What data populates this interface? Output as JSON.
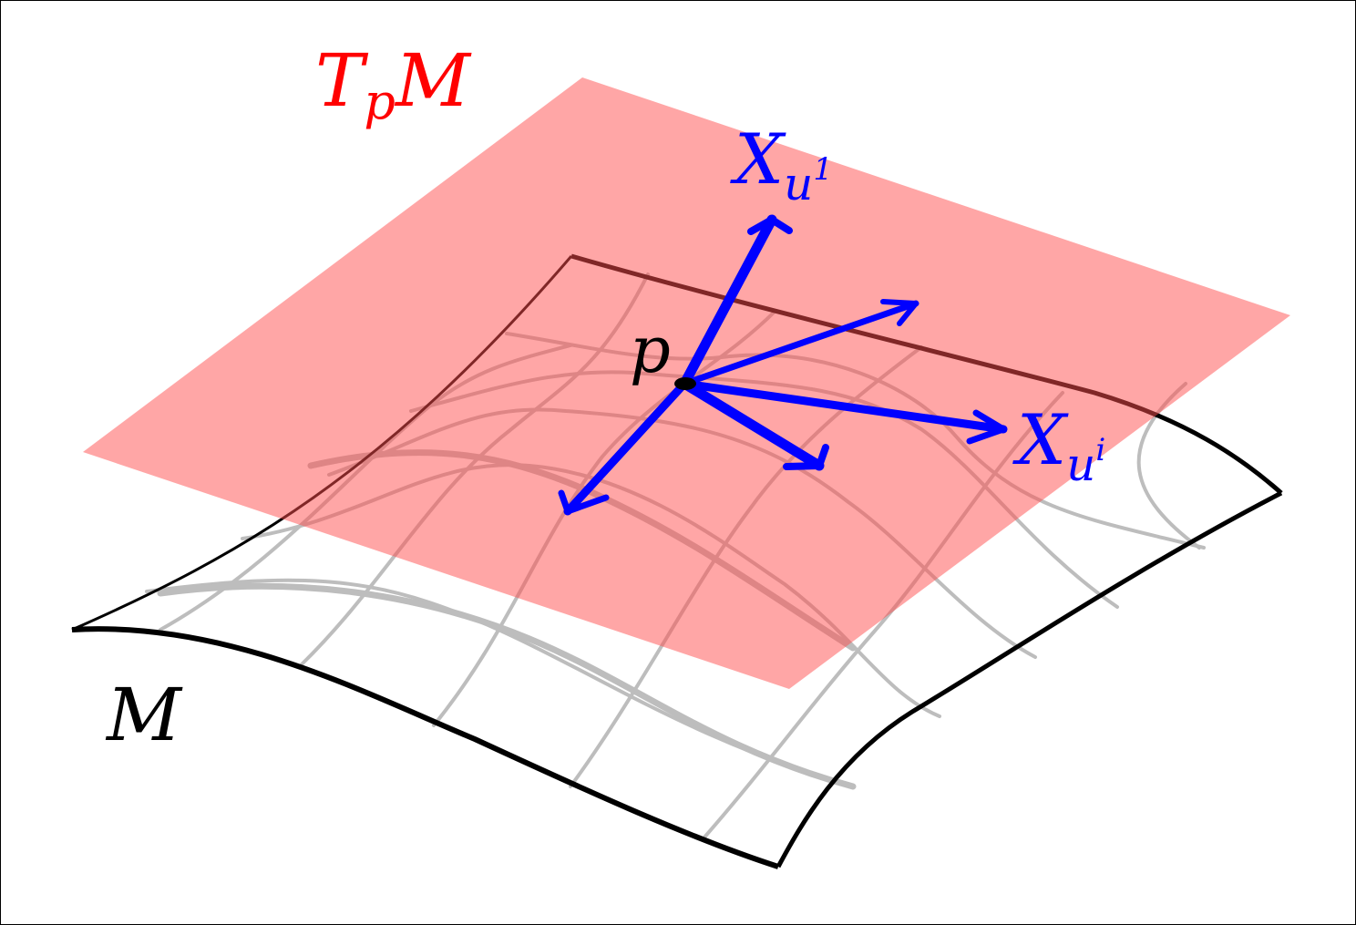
{
  "labels": {
    "tangent_space": {
      "main": "T",
      "sub": "p",
      "tail": "M"
    },
    "manifold": "M",
    "point": "p",
    "vector_1": {
      "main": "X",
      "sub": "u",
      "sup": "1"
    },
    "vector_i": {
      "main": "X",
      "sub": "u",
      "sup": "i"
    }
  },
  "colors": {
    "tangent_plane": "#ff4d4d",
    "vectors": "#0000ff",
    "grid": "#bdbdbd",
    "outline": "#000000",
    "tangent_label": "#ff0000"
  }
}
